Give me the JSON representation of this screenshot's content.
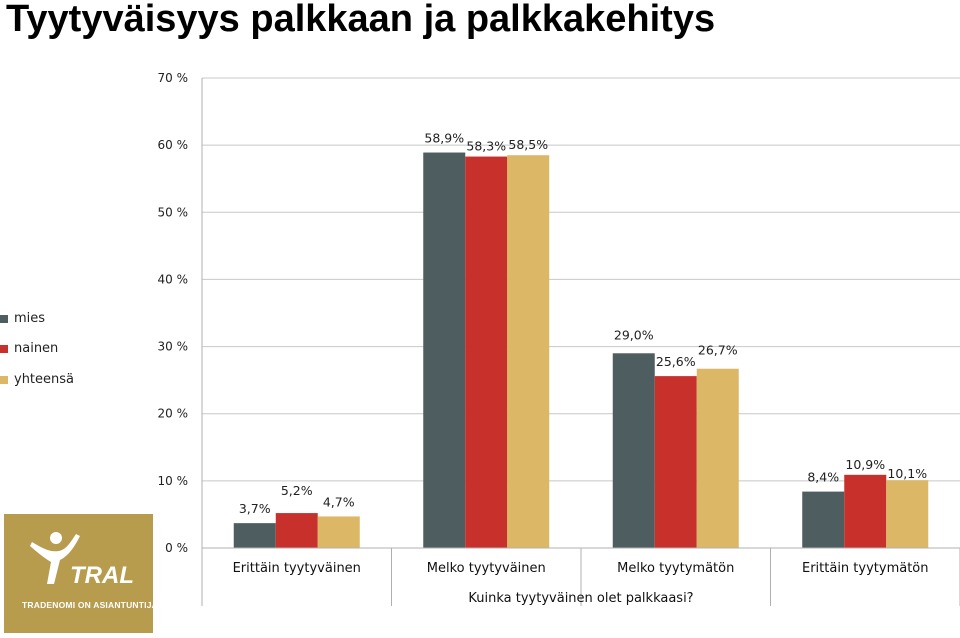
{
  "title": "Tyytyväisyys palkkaan ja palkkakehitys",
  "logo": {
    "word": "TRAL",
    "tagline": "TRADENOMI ON ASIANTUNTIJA.",
    "background": "#b79c4e"
  },
  "chart_data": {
    "type": "bar",
    "title": "Tyytyväisyys palkkaan ja palkkakehitys",
    "xlabel": "Kuinka tyytyväinen olet palkkaasi?",
    "ylabel": "",
    "ylim": [
      0,
      70
    ],
    "y_ticks": [
      0,
      10,
      20,
      30,
      40,
      50,
      60,
      70
    ],
    "y_tick_labels": [
      "0 %",
      "10 %",
      "20 %",
      "30 %",
      "40 %",
      "50 %",
      "60 %",
      "70 %"
    ],
    "grid": true,
    "legend_position": "left",
    "categories": [
      "Erittäin tyytyväinen",
      "Melko tyytyväinen",
      "Melko tyytymätön",
      "Erittäin tyytymätön"
    ],
    "series": [
      {
        "name": "mies",
        "color": "#4e5d60",
        "values": [
          3.7,
          58.9,
          29.0,
          8.4
        ],
        "labels": [
          "3,7%",
          "58,9%",
          "29,0%",
          "8,4%"
        ]
      },
      {
        "name": "nainen",
        "color": "#c8302c",
        "values": [
          5.2,
          58.3,
          25.6,
          10.9
        ],
        "labels": [
          "5,2%",
          "58,3%",
          "25,6%",
          "10,9%"
        ]
      },
      {
        "name": "yhteensä",
        "color": "#dcb765",
        "values": [
          4.7,
          58.5,
          26.7,
          10.1
        ],
        "labels": [
          "4,7%",
          "58,5%",
          "26,7%",
          "10,1%"
        ]
      }
    ]
  }
}
